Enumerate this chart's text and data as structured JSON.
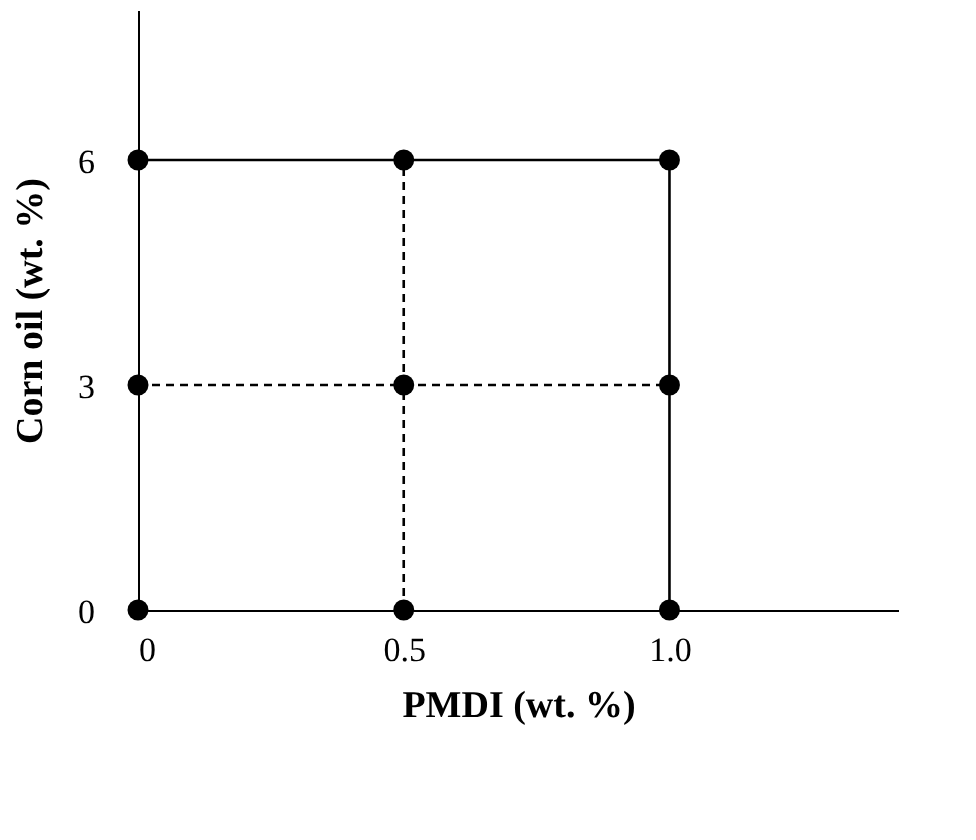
{
  "chart_data": {
    "type": "scatter",
    "xlabel": "PMDI (wt. %)",
    "ylabel": "Corn oil (wt. %)",
    "xlim": [
      0,
      1.43
    ],
    "ylim": [
      0,
      8.0
    ],
    "xticks": [
      0,
      0.5,
      {
        "value": 1,
        "label": "1.0"
      }
    ],
    "yticks": [
      0,
      3,
      6
    ],
    "grid": false,
    "series": [
      {
        "type": "line",
        "color": "#000000",
        "line_style": "solid",
        "x": [
          0,
          1,
          1
        ],
        "values": [
          6,
          6,
          0
        ]
      },
      {
        "type": "line",
        "color": "#000000",
        "line_style": "dashed",
        "x": [
          0.5,
          0.5
        ],
        "values": [
          0,
          6
        ]
      },
      {
        "type": "line",
        "color": "#000000",
        "line_style": "dashed",
        "x": [
          0,
          1
        ],
        "values": [
          3,
          3
        ]
      },
      {
        "color": "#000000",
        "marker": "circle",
        "x": [
          0,
          0,
          0,
          0.5,
          0.5,
          0.5,
          1,
          1,
          1
        ],
        "values": [
          0,
          3,
          6,
          0,
          3,
          6,
          0,
          3,
          6
        ]
      }
    ]
  }
}
